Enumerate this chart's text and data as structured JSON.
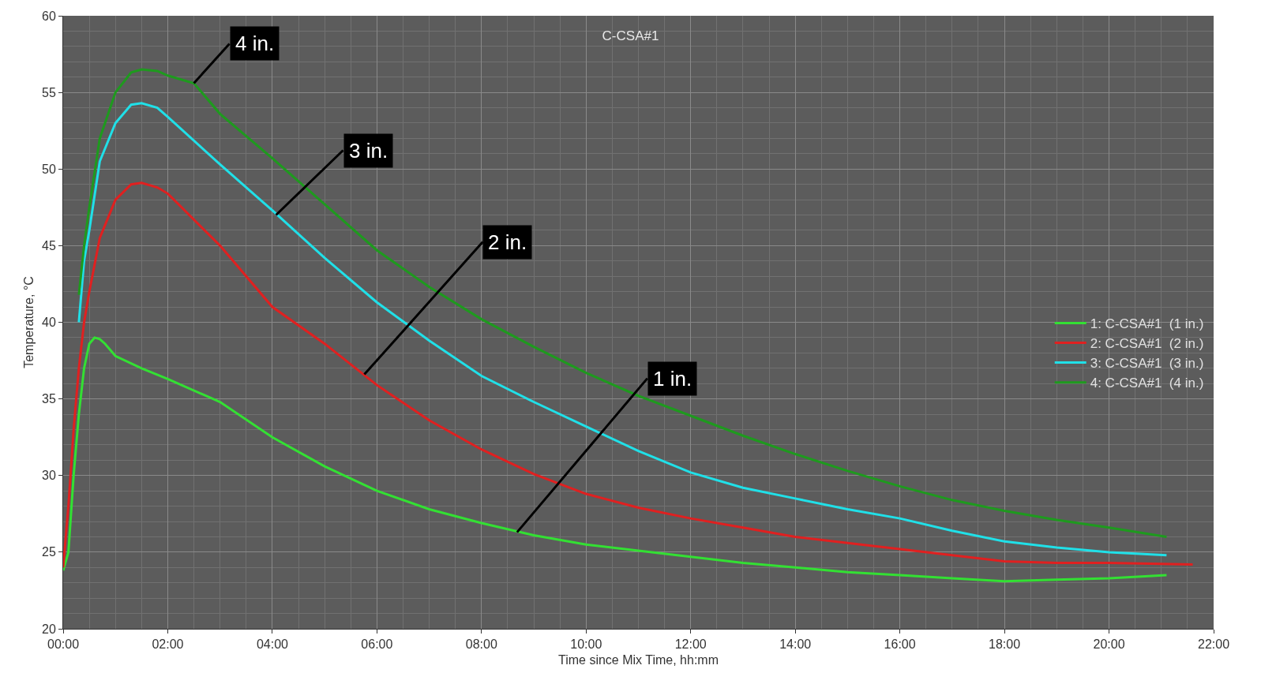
{
  "chart_data": {
    "type": "line",
    "title": "C-CSA#1",
    "xlabel": "Time since Mix Time, hh:mm",
    "ylabel": "Temperature, °C",
    "xlim": [
      0,
      22
    ],
    "ylim": [
      20,
      60
    ],
    "xticks": [
      {
        "value": 0,
        "label": "00:00"
      },
      {
        "value": 2,
        "label": "02:00"
      },
      {
        "value": 4,
        "label": "04:00"
      },
      {
        "value": 6,
        "label": "06:00"
      },
      {
        "value": 8,
        "label": "08:00"
      },
      {
        "value": 10,
        "label": "10:00"
      },
      {
        "value": 12,
        "label": "12:00"
      },
      {
        "value": 14,
        "label": "14:00"
      },
      {
        "value": 16,
        "label": "16:00"
      },
      {
        "value": 18,
        "label": "18:00"
      },
      {
        "value": 20,
        "label": "20:00"
      },
      {
        "value": 22,
        "label": "22:00"
      }
    ],
    "yticks": [
      20,
      25,
      30,
      35,
      40,
      45,
      50,
      55,
      60
    ],
    "grid": true,
    "legend": "right",
    "marker": "none",
    "line_style": "solid",
    "series": [
      {
        "name": "1: C-CSA#1  (1 in.)",
        "color": "#33e033",
        "x": [
          0,
          0.1,
          0.2,
          0.3,
          0.4,
          0.5,
          0.6,
          0.7,
          0.8,
          1.0,
          1.5,
          2.0,
          3.0,
          4.0,
          5.0,
          6.0,
          7.0,
          8.0,
          9.0,
          10.0,
          11.0,
          12.0,
          13.0,
          14.0,
          15.0,
          16.0,
          17.0,
          18.0,
          19.0,
          20.0,
          21.1
        ],
        "values": [
          23.8,
          25,
          30,
          34,
          37,
          38.6,
          39,
          38.9,
          38.6,
          37.8,
          37,
          36.3,
          34.8,
          32.5,
          30.6,
          29,
          27.8,
          26.9,
          26.1,
          25.5,
          25.1,
          24.7,
          24.3,
          24,
          23.7,
          23.5,
          23.3,
          23.1,
          23.2,
          23.3,
          23.5
        ]
      },
      {
        "name": "2: C-CSA#1  (2 in.)",
        "color": "#e02020",
        "x": [
          0,
          0.1,
          0.2,
          0.3,
          0.4,
          0.5,
          0.7,
          1.0,
          1.3,
          1.5,
          1.8,
          2.0,
          3.0,
          4.0,
          5.0,
          6.0,
          7.0,
          8.0,
          9.0,
          10.0,
          11.0,
          12.0,
          13.0,
          14.0,
          15.0,
          16.0,
          17.0,
          18.0,
          19.0,
          20.0,
          21.6
        ],
        "values": [
          24,
          28,
          33,
          37,
          40,
          42,
          45.5,
          48,
          49,
          49.1,
          48.8,
          48.4,
          45,
          41,
          38.6,
          35.9,
          33.6,
          31.7,
          30.1,
          28.8,
          27.9,
          27.2,
          26.6,
          26,
          25.6,
          25.2,
          24.8,
          24.4,
          24.3,
          24.3,
          24.2
        ]
      },
      {
        "name": "3: C-CSA#1  (3 in.)",
        "color": "#20e0e8",
        "x": [
          0.3,
          0.4,
          0.5,
          0.7,
          1.0,
          1.3,
          1.5,
          1.8,
          2.0,
          3.0,
          4.0,
          5.0,
          6.0,
          7.0,
          8.0,
          9.0,
          10.0,
          11.0,
          12.0,
          13.0,
          14.0,
          15.0,
          16.0,
          17.0,
          18.0,
          19.0,
          20.0,
          21.1
        ],
        "values": [
          40,
          44,
          46,
          50.5,
          53,
          54.2,
          54.3,
          54,
          53.4,
          50.3,
          47.3,
          44.2,
          41.3,
          38.8,
          36.5,
          34.8,
          33.2,
          31.6,
          30.2,
          29.2,
          28.5,
          27.8,
          27.2,
          26.4,
          25.7,
          25.3,
          25,
          24.8
        ]
      },
      {
        "name": "4: C-CSA#1  (4 in.)",
        "color": "#1e9a1e",
        "x": [
          0.3,
          0.4,
          0.5,
          0.7,
          1.0,
          1.3,
          1.5,
          1.8,
          2.0,
          2.5,
          3.0,
          4.0,
          5.0,
          6.0,
          7.0,
          8.0,
          9.0,
          10.0,
          11.0,
          12.0,
          13.0,
          14.0,
          15.0,
          16.0,
          17.0,
          18.0,
          19.0,
          20.0,
          21.1
        ],
        "values": [
          41.8,
          45,
          47.5,
          52,
          55,
          56.3,
          56.5,
          56.4,
          56.1,
          55.6,
          53.6,
          50.7,
          47.7,
          44.7,
          42.3,
          40.2,
          38.4,
          36.7,
          35.2,
          33.9,
          32.6,
          31.4,
          30.3,
          29.3,
          28.4,
          27.7,
          27.1,
          26.6,
          26
        ]
      }
    ],
    "annotations": [
      {
        "text": "4 in.",
        "x": 2.5,
        "y": 55.6
      },
      {
        "text": "3 in.",
        "x": 4.07,
        "y": 47.0
      },
      {
        "text": "2 in.",
        "x": 5.76,
        "y": 36.6
      },
      {
        "text": "1 in.",
        "x": 8.68,
        "y": 26.3
      }
    ]
  }
}
